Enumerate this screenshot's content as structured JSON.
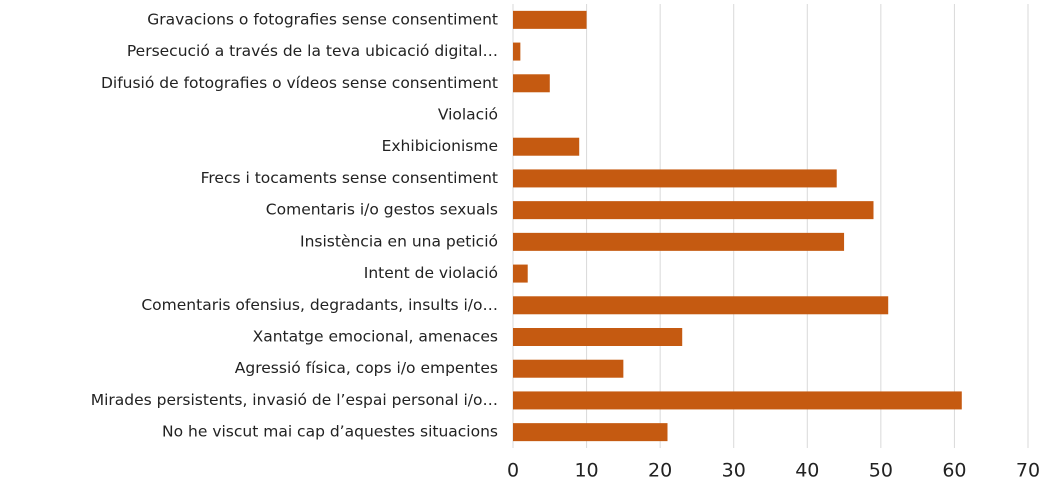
{
  "chart_data": {
    "type": "bar",
    "orientation": "horizontal",
    "categories": [
      "Gravacions o fotografies sense consentiment",
      "Persecució a través de la teva ubicació digital…",
      "Difusió de fotografies o vídeos sense consentiment",
      "Violació",
      "Exhibicionisme",
      "Frecs i tocaments sense consentiment",
      "Comentaris i/o gestos sexuals",
      "Insistència en una petició",
      "Intent de violació",
      "Comentaris ofensius, degradants, insults i/o…",
      "Xantatge emocional, amenaces",
      "Agressió física, cops i/o empentes",
      "Mirades persistents, invasió de l’espai personal i/o…",
      "No he viscut mai cap d’aquestes situacions"
    ],
    "values": [
      10,
      1,
      5,
      0,
      9,
      44,
      49,
      45,
      2,
      51,
      23,
      15,
      61,
      21
    ],
    "color": "#c55a11",
    "xlim": [
      0,
      70
    ],
    "xticks": [
      0,
      10,
      20,
      30,
      40,
      50,
      60,
      70
    ],
    "grid": true
  }
}
